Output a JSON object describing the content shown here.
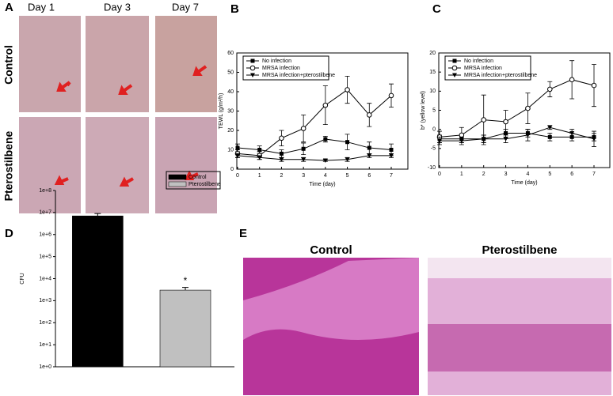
{
  "photo_panel": {
    "label": "A",
    "columns": [
      "Day 1",
      "Day 3",
      "Day 7"
    ],
    "rows": [
      "Control",
      "Pterostilbene"
    ]
  },
  "histology_panel": {
    "label": "E",
    "columns": [
      "Control",
      "Pterostilbene"
    ]
  },
  "chart_data": [
    {
      "type": "line",
      "panel_label": "B",
      "xlabel": "Time (day)",
      "ylabel": "TEWL (g/m²/h)",
      "x": [
        0,
        1,
        2,
        3,
        4,
        5,
        6,
        7
      ],
      "xlim": [
        0,
        7
      ],
      "xticks": [
        0,
        1,
        2,
        3,
        4,
        5,
        6,
        7
      ],
      "ylim": [
        0,
        60
      ],
      "yticks": [
        0,
        10,
        20,
        30,
        40,
        50,
        60
      ],
      "legend": "upper left",
      "series": [
        {
          "name": "No infection",
          "color": "#000000",
          "marker": "square",
          "values": [
            11,
            10,
            8,
            10.5,
            15.5,
            14,
            11,
            10
          ],
          "errors": [
            2,
            2,
            2,
            3,
            1.5,
            4,
            3,
            3
          ]
        },
        {
          "name": "MRSA infection",
          "color": "#000000",
          "marker": "circle",
          "values": [
            8,
            7,
            16,
            21,
            33,
            41,
            28,
            38
          ],
          "errors": [
            2,
            2,
            4,
            7,
            10,
            7,
            6,
            6
          ]
        },
        {
          "name": "MRSA infection+pterostilbene",
          "color": "#000000",
          "marker": "triangle-down",
          "values": [
            7,
            6,
            5,
            5,
            4.5,
            5,
            7,
            7
          ],
          "errors": [
            1,
            1,
            1,
            1,
            0.5,
            1,
            1,
            1
          ]
        }
      ]
    },
    {
      "type": "line",
      "panel_label": "C",
      "xlabel": "Time (day)",
      "ylabel": "b* (yellow level)",
      "x": [
        0,
        1,
        2,
        3,
        4,
        5,
        6,
        7
      ],
      "xlim": [
        0,
        7
      ],
      "xticks": [
        0,
        1,
        2,
        3,
        4,
        5,
        6,
        7
      ],
      "ylim": [
        -10,
        20
      ],
      "yticks": [
        -10,
        -5,
        0,
        5,
        10,
        15,
        20
      ],
      "legend": "upper left",
      "series": [
        {
          "name": "No infection",
          "color": "#000000",
          "marker": "square",
          "values": [
            -2.5,
            -2.5,
            -2.5,
            -1,
            -1,
            -2,
            -2,
            -2
          ],
          "errors": [
            1,
            1,
            1,
            1,
            1,
            1,
            1,
            1
          ]
        },
        {
          "name": "MRSA infection",
          "color": "#000000",
          "marker": "circle",
          "values": [
            -2,
            -1.5,
            2.5,
            2,
            5.5,
            10.5,
            13,
            11.5
          ],
          "errors": [
            1.5,
            2,
            6.5,
            3,
            4,
            2,
            5,
            5.5
          ]
        },
        {
          "name": "MRSA infection+pterostilbene",
          "color": "#000000",
          "marker": "triangle-down",
          "values": [
            -3,
            -3,
            -2.5,
            -2.5,
            -1.5,
            0.5,
            -1,
            -2.5
          ],
          "errors": [
            1,
            1,
            1,
            1,
            1.5,
            0.5,
            1,
            2
          ]
        }
      ]
    },
    {
      "type": "bar",
      "panel_label": "D",
      "ylabel": "CFU",
      "log_scale": true,
      "legend": "upper right",
      "categories": [
        null
      ],
      "ylim": [
        1,
        100000000
      ],
      "yticks": [
        {
          "value": 1,
          "label": "1e+0"
        },
        {
          "value": 10,
          "label": "1e+1"
        },
        {
          "value": 100,
          "label": "1e+2"
        },
        {
          "value": 1000,
          "label": "1e+3"
        },
        {
          "value": 10000,
          "label": "1e+4"
        },
        {
          "value": 100000,
          "label": "1e+5"
        },
        {
          "value": 1000000,
          "label": "1e+6"
        },
        {
          "value": 10000000,
          "label": "1e+7"
        },
        {
          "value": 100000000,
          "label": "1e+8"
        }
      ],
      "series": [
        {
          "name": "Control",
          "color": "#000000",
          "values": [
            7000000
          ],
          "errors": [
            2000000
          ]
        },
        {
          "name": "Pterostilbene",
          "color": "#c0c0c0",
          "values": [
            3000
          ],
          "errors": [
            1000
          ]
        }
      ],
      "annotations": [
        "*"
      ]
    }
  ]
}
